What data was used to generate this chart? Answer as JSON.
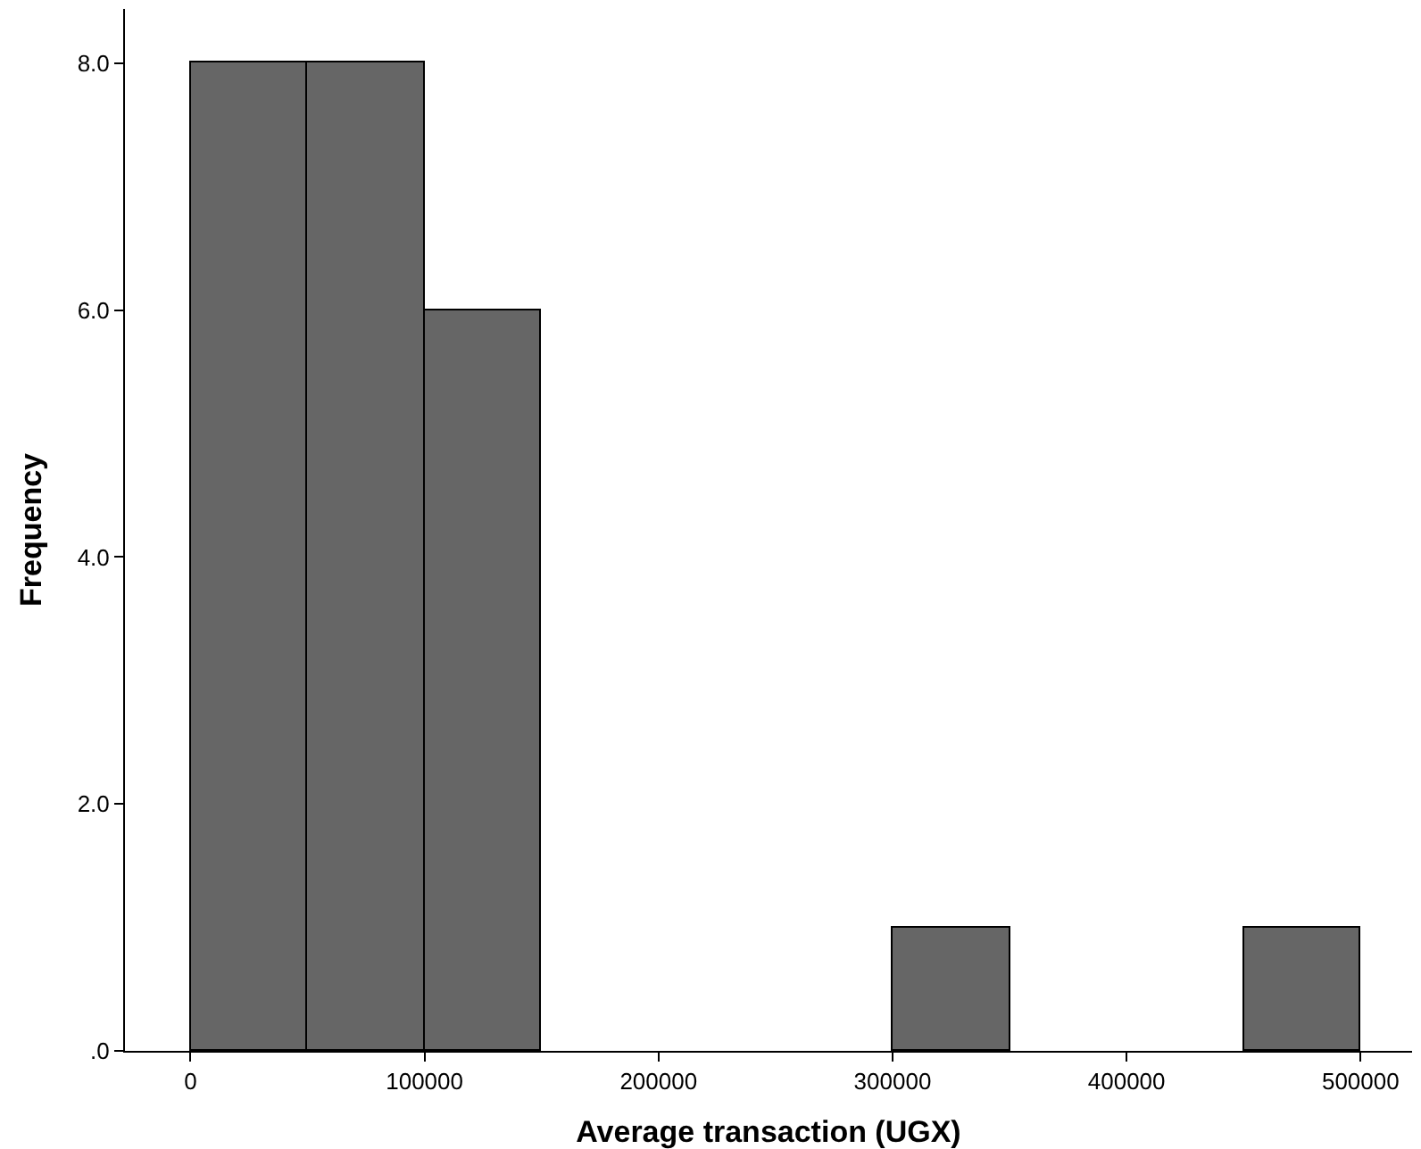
{
  "chart_data": {
    "type": "histogram",
    "xlabel": "Average transaction (UGX)",
    "ylabel": "Frequency",
    "bins": [
      0,
      50000,
      100000,
      150000,
      200000,
      250000,
      300000,
      350000,
      400000,
      450000,
      500000
    ],
    "values": [
      8,
      8,
      6,
      0,
      0,
      0,
      1,
      0,
      0,
      1
    ],
    "color": "#666666",
    "xlim": [
      -28000,
      522000
    ],
    "xticks": [
      0,
      100000,
      200000,
      300000,
      400000,
      500000
    ],
    "ylim": [
      0,
      8.44
    ],
    "yticks": [
      {
        "value": 0,
        "label": ".0"
      },
      {
        "value": 2,
        "label": "2.0"
      },
      {
        "value": 4,
        "label": "4.0"
      },
      {
        "value": 6,
        "label": "6.0"
      },
      {
        "value": 8,
        "label": "8.0"
      }
    ]
  }
}
